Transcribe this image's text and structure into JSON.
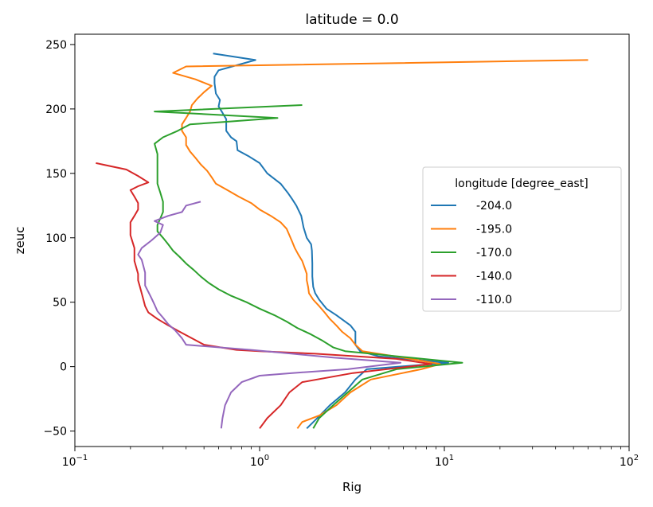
{
  "chart_data": {
    "type": "line",
    "title": "latitude = 0.0",
    "xlabel": "Rig",
    "ylabel": "zeuc",
    "xscale": "log",
    "xlim": [
      0.1,
      100
    ],
    "ylim": [
      -62,
      258
    ],
    "x_ticks": [
      {
        "value": 0.1,
        "base": "10",
        "exp": "−1"
      },
      {
        "value": 1,
        "base": "10",
        "exp": "0"
      },
      {
        "value": 10,
        "base": "10",
        "exp": "1"
      },
      {
        "value": 100,
        "base": "10",
        "exp": "2"
      }
    ],
    "y_ticks": [
      -50,
      0,
      50,
      100,
      150,
      200,
      250
    ],
    "grid": false,
    "legend": {
      "title": "longitude [degree_east]",
      "position": "center-right"
    },
    "series": [
      {
        "name": "-204.0",
        "color": "#1f77b4",
        "points": [
          [
            1.8,
            -48
          ],
          [
            2.05,
            -40
          ],
          [
            2.4,
            -30
          ],
          [
            2.9,
            -20
          ],
          [
            3.3,
            -10
          ],
          [
            3.8,
            -2
          ],
          [
            10.5,
            3
          ],
          [
            4.4,
            8
          ],
          [
            3.5,
            12
          ],
          [
            3.3,
            17
          ],
          [
            3.3,
            27
          ],
          [
            3.1,
            32
          ],
          [
            2.6,
            40
          ],
          [
            2.3,
            45
          ],
          [
            2.1,
            52
          ],
          [
            2.0,
            57
          ],
          [
            1.95,
            62
          ],
          [
            1.93,
            70
          ],
          [
            1.93,
            80
          ],
          [
            1.92,
            90
          ],
          [
            1.9,
            95
          ],
          [
            1.8,
            100
          ],
          [
            1.73,
            108
          ],
          [
            1.68,
            117
          ],
          [
            1.58,
            125
          ],
          [
            1.5,
            130
          ],
          [
            1.42,
            135
          ],
          [
            1.3,
            142
          ],
          [
            1.1,
            150
          ],
          [
            1.0,
            158
          ],
          [
            0.88,
            163
          ],
          [
            0.76,
            168
          ],
          [
            0.75,
            175
          ],
          [
            0.7,
            178
          ],
          [
            0.66,
            183
          ],
          [
            0.66,
            192
          ],
          [
            0.63,
            197
          ],
          [
            0.6,
            202
          ],
          [
            0.61,
            207
          ],
          [
            0.58,
            212
          ],
          [
            0.57,
            220
          ],
          [
            0.57,
            225
          ],
          [
            0.6,
            230
          ],
          [
            0.95,
            238
          ],
          [
            0.56,
            243
          ]
        ]
      },
      {
        "name": "-195.0",
        "color": "#ff7f0e",
        "points": [
          [
            1.6,
            -48
          ],
          [
            1.7,
            -43
          ],
          [
            2.1,
            -38
          ],
          [
            2.6,
            -30
          ],
          [
            3.1,
            -20
          ],
          [
            4.0,
            -10
          ],
          [
            7.5,
            -2
          ],
          [
            9.5,
            2
          ],
          [
            6.0,
            7
          ],
          [
            3.6,
            12
          ],
          [
            3.3,
            17
          ],
          [
            3.1,
            22
          ],
          [
            2.8,
            27
          ],
          [
            2.6,
            32
          ],
          [
            2.4,
            37
          ],
          [
            2.25,
            42
          ],
          [
            2.1,
            47
          ],
          [
            1.95,
            52
          ],
          [
            1.85,
            57
          ],
          [
            1.83,
            62
          ],
          [
            1.8,
            67
          ],
          [
            1.8,
            72
          ],
          [
            1.75,
            77
          ],
          [
            1.7,
            82
          ],
          [
            1.62,
            87
          ],
          [
            1.55,
            92
          ],
          [
            1.5,
            97
          ],
          [
            1.45,
            102
          ],
          [
            1.4,
            107
          ],
          [
            1.3,
            112
          ],
          [
            1.15,
            117
          ],
          [
            1.0,
            122
          ],
          [
            0.9,
            127
          ],
          [
            0.77,
            132
          ],
          [
            0.67,
            137
          ],
          [
            0.58,
            142
          ],
          [
            0.55,
            147
          ],
          [
            0.52,
            152
          ],
          [
            0.48,
            157
          ],
          [
            0.45,
            162
          ],
          [
            0.42,
            167
          ],
          [
            0.4,
            172
          ],
          [
            0.4,
            178
          ],
          [
            0.38,
            183
          ],
          [
            0.38,
            188
          ],
          [
            0.4,
            193
          ],
          [
            0.42,
            198
          ],
          [
            0.43,
            203
          ],
          [
            0.46,
            208
          ],
          [
            0.5,
            213
          ],
          [
            0.55,
            218
          ],
          [
            0.45,
            223
          ],
          [
            0.34,
            228
          ],
          [
            0.4,
            233
          ],
          [
            60,
            238
          ]
        ]
      },
      {
        "name": "-170.0",
        "color": "#2ca02c",
        "points": [
          [
            1.95,
            -48
          ],
          [
            2.1,
            -40
          ],
          [
            2.5,
            -30
          ],
          [
            3.0,
            -20
          ],
          [
            3.6,
            -10
          ],
          [
            5.5,
            -2
          ],
          [
            12.5,
            3
          ],
          [
            6.5,
            7
          ],
          [
            4.0,
            10
          ],
          [
            2.9,
            12
          ],
          [
            2.5,
            15
          ],
          [
            2.2,
            20
          ],
          [
            1.9,
            25
          ],
          [
            1.6,
            30
          ],
          [
            1.4,
            35
          ],
          [
            1.2,
            40
          ],
          [
            1.0,
            45
          ],
          [
            0.85,
            50
          ],
          [
            0.7,
            55
          ],
          [
            0.6,
            60
          ],
          [
            0.53,
            65
          ],
          [
            0.48,
            70
          ],
          [
            0.44,
            75
          ],
          [
            0.4,
            80
          ],
          [
            0.37,
            85
          ],
          [
            0.34,
            90
          ],
          [
            0.32,
            95
          ],
          [
            0.3,
            100
          ],
          [
            0.28,
            105
          ],
          [
            0.28,
            110
          ],
          [
            0.29,
            115
          ],
          [
            0.3,
            120
          ],
          [
            0.3,
            128
          ],
          [
            0.29,
            135
          ],
          [
            0.28,
            142
          ],
          [
            0.28,
            150
          ],
          [
            0.28,
            158
          ],
          [
            0.28,
            165
          ],
          [
            0.27,
            173
          ],
          [
            0.3,
            178
          ],
          [
            0.36,
            183
          ],
          [
            0.42,
            188
          ],
          [
            0.65,
            190
          ],
          [
            1.25,
            193
          ],
          [
            0.27,
            198
          ],
          [
            1.7,
            203
          ]
        ]
      },
      {
        "name": "-140.0",
        "color": "#d62728",
        "points": [
          [
            1.0,
            -48
          ],
          [
            1.1,
            -40
          ],
          [
            1.3,
            -30
          ],
          [
            1.45,
            -20
          ],
          [
            1.7,
            -12
          ],
          [
            3.2,
            -5
          ],
          [
            8.5,
            2
          ],
          [
            5.5,
            6
          ],
          [
            2.0,
            10
          ],
          [
            1.0,
            12
          ],
          [
            0.75,
            13
          ],
          [
            0.5,
            17
          ],
          [
            0.43,
            22
          ],
          [
            0.37,
            27
          ],
          [
            0.32,
            32
          ],
          [
            0.28,
            37
          ],
          [
            0.25,
            42
          ],
          [
            0.24,
            47
          ],
          [
            0.235,
            52
          ],
          [
            0.23,
            57
          ],
          [
            0.225,
            62
          ],
          [
            0.22,
            67
          ],
          [
            0.22,
            72
          ],
          [
            0.215,
            77
          ],
          [
            0.21,
            82
          ],
          [
            0.21,
            87
          ],
          [
            0.21,
            92
          ],
          [
            0.205,
            97
          ],
          [
            0.2,
            102
          ],
          [
            0.2,
            107
          ],
          [
            0.2,
            112
          ],
          [
            0.21,
            117
          ],
          [
            0.22,
            122
          ],
          [
            0.22,
            127
          ],
          [
            0.21,
            132
          ],
          [
            0.2,
            137
          ],
          [
            0.22,
            140
          ],
          [
            0.25,
            143
          ],
          [
            0.22,
            148
          ],
          [
            0.19,
            153
          ],
          [
            0.13,
            158
          ]
        ]
      },
      {
        "name": "-110.0",
        "color": "#9467bd",
        "points": [
          [
            0.62,
            -48
          ],
          [
            0.63,
            -40
          ],
          [
            0.65,
            -30
          ],
          [
            0.7,
            -20
          ],
          [
            0.8,
            -12
          ],
          [
            1.0,
            -7
          ],
          [
            1.5,
            -5
          ],
          [
            3.0,
            -2
          ],
          [
            5.8,
            3
          ],
          [
            2.5,
            7
          ],
          [
            1.5,
            10
          ],
          [
            0.9,
            13
          ],
          [
            0.6,
            15
          ],
          [
            0.4,
            17
          ],
          [
            0.38,
            22
          ],
          [
            0.35,
            28
          ],
          [
            0.32,
            33
          ],
          [
            0.3,
            38
          ],
          [
            0.28,
            43
          ],
          [
            0.27,
            48
          ],
          [
            0.26,
            53
          ],
          [
            0.25,
            58
          ],
          [
            0.24,
            63
          ],
          [
            0.24,
            68
          ],
          [
            0.24,
            73
          ],
          [
            0.235,
            78
          ],
          [
            0.23,
            83
          ],
          [
            0.22,
            87
          ],
          [
            0.23,
            92
          ],
          [
            0.26,
            98
          ],
          [
            0.29,
            104
          ],
          [
            0.3,
            110
          ],
          [
            0.27,
            113
          ],
          [
            0.32,
            117
          ],
          [
            0.38,
            120
          ],
          [
            0.4,
            125
          ],
          [
            0.48,
            128
          ]
        ]
      }
    ]
  }
}
